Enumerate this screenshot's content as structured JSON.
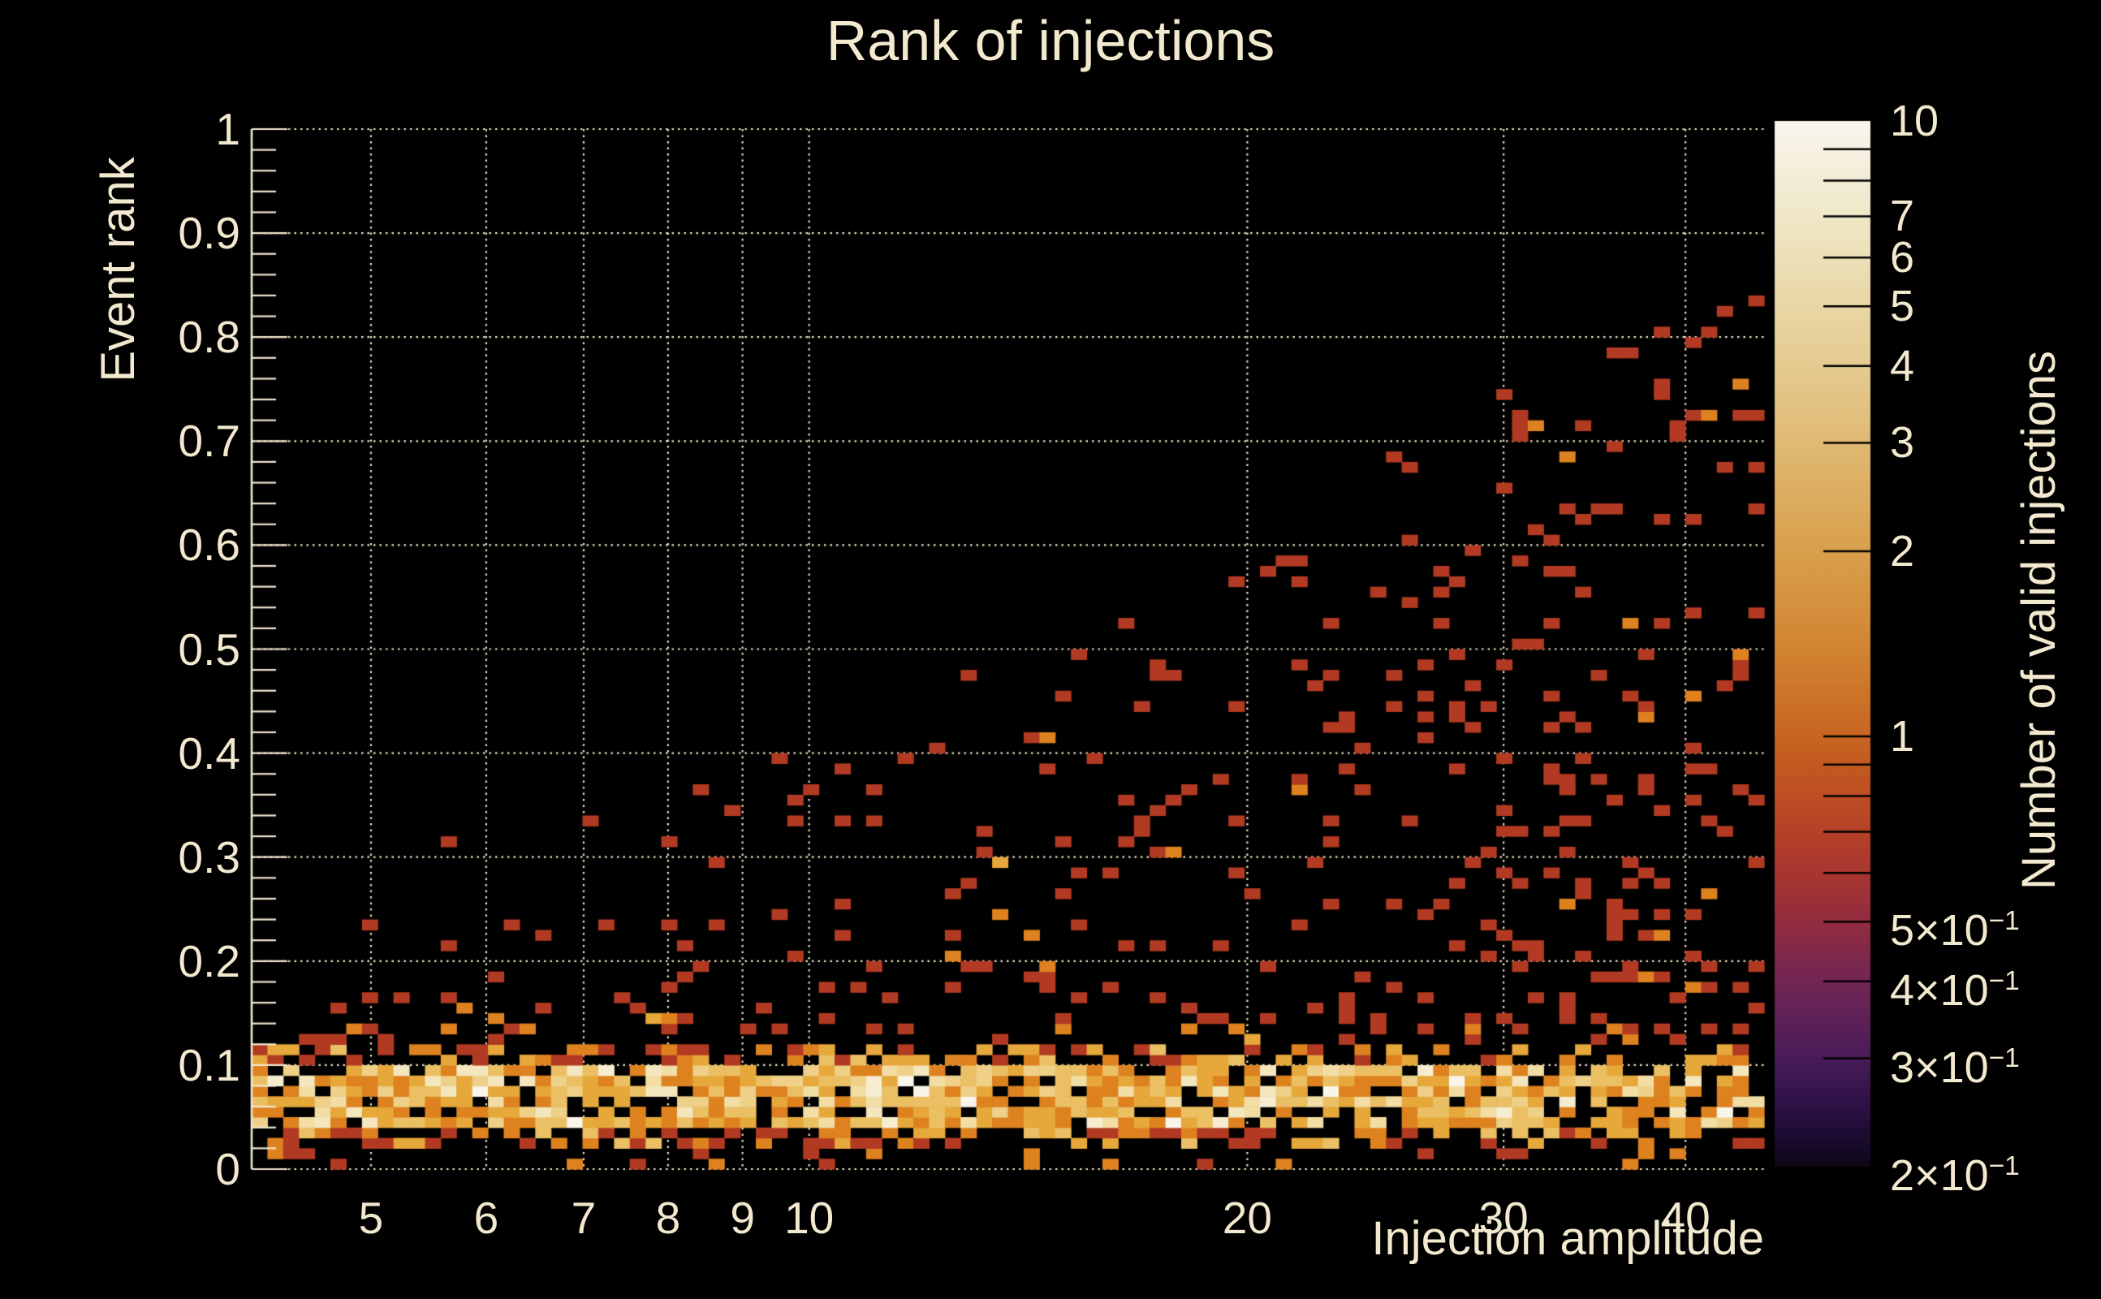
{
  "title": "Rank of injections",
  "colors": {
    "background": "#000000",
    "text": "#f2e9cf",
    "grid": "#efe5c8",
    "axis": "#f2e9cf",
    "colorbar_tick": "#000000"
  },
  "axes": {
    "x": {
      "title": "Injection amplitude",
      "scale": "log",
      "min": 4.14,
      "max": 45.3,
      "tick_labels": [
        "5",
        "6",
        "7",
        "8",
        "9",
        "10",
        "20",
        "30",
        "40"
      ],
      "tick_values": [
        5,
        6,
        7,
        8,
        9,
        10,
        20,
        30,
        40
      ]
    },
    "y": {
      "title": "Event rank",
      "min": 0,
      "max": 1,
      "tick_labels": [
        "0",
        "0.1",
        "0.2",
        "0.3",
        "0.4",
        "0.5",
        "0.6",
        "0.7",
        "0.8",
        "0.9",
        "1"
      ],
      "tick_values": [
        0,
        0.1,
        0.2,
        0.3,
        0.4,
        0.5,
        0.6,
        0.7,
        0.8,
        0.9,
        1
      ]
    },
    "z": {
      "title": "Number of valid injections",
      "scale": "log",
      "min": 0.2,
      "max": 10,
      "labels": [
        {
          "text": "10",
          "sup": "",
          "v": 10
        },
        {
          "text": "7",
          "sup": "",
          "v": 7
        },
        {
          "text": "6",
          "sup": "",
          "v": 6
        },
        {
          "text": "5",
          "sup": "",
          "v": 5
        },
        {
          "text": "4",
          "sup": "",
          "v": 4
        },
        {
          "text": "3",
          "sup": "",
          "v": 3
        },
        {
          "text": "2",
          "sup": "",
          "v": 2
        },
        {
          "text": "1",
          "sup": "",
          "v": 1
        },
        {
          "text": "5×10",
          "sup": "−1",
          "v": 0.5
        },
        {
          "text": "4×10",
          "sup": "−1",
          "v": 0.4
        },
        {
          "text": "3×10",
          "sup": "−1",
          "v": 0.3
        },
        {
          "text": "2×10",
          "sup": "−1",
          "v": 0.2
        }
      ],
      "tick_values": [
        9,
        8,
        7,
        6,
        5,
        4,
        3,
        2,
        1,
        0.9,
        0.8,
        0.7,
        0.6,
        0.5,
        0.4,
        0.3
      ]
    }
  },
  "chart_data": {
    "type": "heatmap",
    "title": "Rank of injections",
    "xlabel": "Injection amplitude",
    "ylabel": "Event rank",
    "zlabel": "Number of valid injections",
    "x_scale": "log",
    "x_range": [
      4.14,
      45.3
    ],
    "y_range": [
      0,
      1
    ],
    "z_scale": "log",
    "z_range": [
      0.2,
      10
    ],
    "grid_on": true,
    "bins": {
      "nx": 96,
      "ny": 100
    },
    "palette_by_count": {
      "1": "#b23a23",
      "2": "#de8220",
      "3": "#e7a83b",
      "4": "#ebbf63",
      "5": "#efd088",
      "6": "#f2dda4",
      "7": "#f4e6bd",
      "8": "#f6edd0",
      "10": "#f9f5e8"
    },
    "colorbar_stops": [
      [
        0.0,
        "#f9f6ee"
      ],
      [
        0.04,
        "#f5efdd"
      ],
      [
        0.1,
        "#efe6c4"
      ],
      [
        0.18,
        "#e9d6a4"
      ],
      [
        0.26,
        "#e3c586"
      ],
      [
        0.34,
        "#deb267"
      ],
      [
        0.42,
        "#d89d49"
      ],
      [
        0.5,
        "#d28633"
      ],
      [
        0.56,
        "#cb7026"
      ],
      [
        0.6,
        "#c66121"
      ],
      [
        0.64,
        "#bf5022"
      ],
      [
        0.68,
        "#b64128"
      ],
      [
        0.72,
        "#a83630"
      ],
      [
        0.76,
        "#962d3e"
      ],
      [
        0.8,
        "#7f294e"
      ],
      [
        0.85,
        "#632358"
      ],
      [
        0.9,
        "#471b57"
      ],
      [
        0.94,
        "#2f1247"
      ],
      [
        0.97,
        "#1d0c32"
      ],
      [
        1.0,
        "#0d0716"
      ]
    ],
    "pattern": {
      "description": "2D histogram: dense bright band (counts 2-10) at event rank 0.02-0.11 across all amplitudes; sparse count-1 (rarely 2-3) cells above the band whose maximum rank grows with amplitude, from about 0.3 at amplitude 5 to about 0.85 at amplitude 40.",
      "seed": 99,
      "band": {
        "core_rows": [
          4,
          9
        ],
        "edge_rows": [
          2,
          11
        ],
        "p_core": 0.8,
        "p_edge": 0.52,
        "core_weights": {
          "2": 30,
          "3": 25,
          "4": 18,
          "5": 10,
          "6": 7,
          "7": 5,
          "8": 3,
          "10": 2
        },
        "edge_weights": {
          "1": 35,
          "2": 35,
          "3": 20,
          "4": 10
        }
      },
      "sub_band": {
        "rows": [
          0,
          1
        ],
        "p": 0.1,
        "weights": {
          "1": 60,
          "2": 40
        }
      },
      "above_band": {
        "rows": [
          12,
          15
        ],
        "p": 0.15,
        "weights": {
          "1": 75,
          "2": 20,
          "3": 5
        }
      },
      "scatter": {
        "env_base": 0.29,
        "env_amp": 0.62,
        "env_pow": 1.55,
        "outlier_p": 0.004,
        "outlier_boost": 1.18,
        "p0": 0.035,
        "p1": 0.095,
        "x_gain_min": 0.5,
        "x_gain_max": 1.4,
        "weights": {
          "1": 92,
          "2": 7,
          "3": 1
        }
      }
    }
  }
}
